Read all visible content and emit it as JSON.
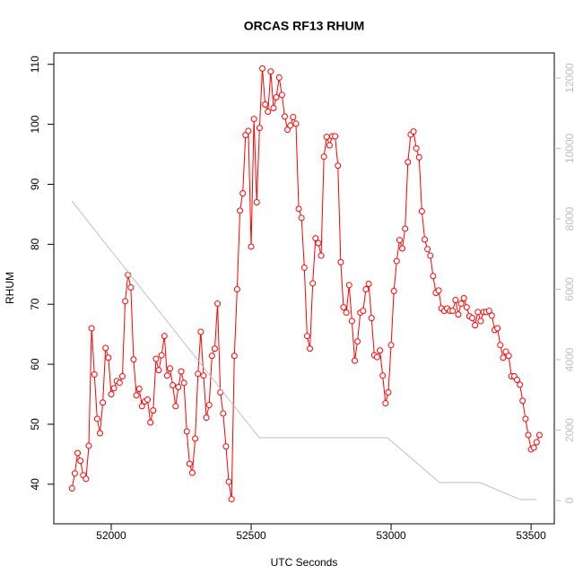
{
  "chart_data": {
    "type": "line",
    "title": "ORCAS RF13 RHUM",
    "xlabel": "UTC Seconds",
    "ylabel": "RHUM",
    "xlim": [
      51795,
      53583
    ],
    "xticks": [
      52000,
      52500,
      53000,
      53500
    ],
    "ylim": [
      33.4,
      111.9
    ],
    "yticks": [
      40,
      50,
      60,
      70,
      80,
      90,
      100,
      110
    ],
    "y2lim": [
      -662,
      12713
    ],
    "y2ticks": [
      0,
      2000,
      4000,
      6000,
      8000,
      10000,
      12000
    ],
    "series": [
      {
        "color": "#ff0000",
        "markers": true,
        "x": [
          51860,
          51870,
          51880,
          51890,
          51900,
          51910,
          51920,
          51930,
          51940,
          51950,
          51960,
          51970,
          51980,
          51990,
          52000,
          52010,
          52020,
          52030,
          52040,
          52050,
          52060,
          52070,
          52080,
          52090,
          52100,
          52110,
          52120,
          52130,
          52140,
          52150,
          52160,
          52170,
          52180,
          52190,
          52200,
          52210,
          52220,
          52230,
          52240,
          52250,
          52260,
          52270,
          52280,
          52290,
          52300,
          52310,
          52320,
          52330,
          52340,
          52350,
          52360,
          52370,
          52380,
          52390,
          52400,
          52410,
          52420,
          52430,
          52440,
          52450,
          52460,
          52470,
          52480,
          52490,
          52500,
          52510,
          52520,
          52530,
          52540,
          52550,
          52560,
          52570,
          52580,
          52590,
          52600,
          52610,
          52620,
          52630,
          52640,
          52650,
          52660,
          52670,
          52680,
          52690,
          52700,
          52710,
          52720,
          52730,
          52740,
          52750,
          52760,
          52770,
          52780,
          52790,
          52800,
          52810,
          52820,
          52830,
          52840,
          52850,
          52860,
          52870,
          52880,
          52890,
          52900,
          52910,
          52920,
          52930,
          52940,
          52950,
          52960,
          52970,
          52980,
          52990,
          53000,
          53010,
          53020,
          53030,
          53040,
          53050,
          53060,
          53070,
          53080,
          53090,
          53100,
          53110,
          53120,
          53130,
          53140,
          53150,
          53160,
          53170,
          53180,
          53190,
          53200,
          53210,
          53220,
          53230,
          53240,
          53250,
          53260,
          53270,
          53280,
          53290,
          53300,
          53310,
          53320,
          53330,
          53340,
          53350,
          53360,
          53370,
          53380,
          53390,
          53400,
          53410,
          53420,
          53430,
          53440,
          53450,
          53460,
          53470,
          53480,
          53490,
          53500,
          53510,
          53520,
          53530
        ],
        "values": [
          39.3,
          41.8,
          45.2,
          43.9,
          41.5,
          40.9,
          46.4,
          66.0,
          58.3,
          50.9,
          48.5,
          53.6,
          62.7,
          61.1,
          55.0,
          56.0,
          57.2,
          56.9,
          58.0,
          70.5,
          74.9,
          72.8,
          60.8,
          54.8,
          55.9,
          53.0,
          53.8,
          54.1,
          50.3,
          52.3,
          60.9,
          59.0,
          61.5,
          64.7,
          58.1,
          59.3,
          56.5,
          53.0,
          56.2,
          58.8,
          56.9,
          48.8,
          43.4,
          41.9,
          47.6,
          58.4,
          65.4,
          58.1,
          51.1,
          53.2,
          61.4,
          62.6,
          70.1,
          55.3,
          51.8,
          46.3,
          40.4,
          37.5,
          61.4,
          72.5,
          85.6,
          88.5,
          98.2,
          98.9,
          79.6,
          100.9,
          87.0,
          99.4,
          109.3,
          103.3,
          102.1,
          108.8,
          102.7,
          104.5,
          107.8,
          104.9,
          101.3,
          99.1,
          99.8,
          101.2,
          100.1,
          85.9,
          84.4,
          76.1,
          64.7,
          62.6,
          73.5,
          81.0,
          80.2,
          78.1,
          94.6,
          97.9,
          96.5,
          98.0,
          98.0,
          93.1,
          77.0,
          69.5,
          68.6,
          73.2,
          67.2,
          60.6,
          63.8,
          68.6,
          68.9,
          72.5,
          73.4,
          67.7,
          61.5,
          61.2,
          62.3,
          58.1,
          53.5,
          55.3,
          63.2,
          72.2,
          77.2,
          80.7,
          79.3,
          82.6,
          93.7,
          98.3,
          98.8,
          96.0,
          94.5,
          85.5,
          80.8,
          79.2,
          78.1,
          74.7,
          71.9,
          72.3,
          69.3,
          68.9,
          69.3,
          68.9,
          68.9,
          70.7,
          68.3,
          70.1,
          71.0,
          69.5,
          68.0,
          67.7,
          66.5,
          68.7,
          67.2,
          68.7,
          68.7,
          68.9,
          68.1,
          65.7,
          66.0,
          63.2,
          61.1,
          62.1,
          61.4,
          58.0,
          58.0,
          57.4,
          56.6,
          53.9,
          50.9,
          48.2,
          45.8,
          46.1,
          47.0,
          48.2
        ]
      },
      {
        "color": "#bebebe",
        "markers": false,
        "axis": "y2",
        "x": [
          51859,
          52529,
          52987,
          53173,
          53317,
          53462,
          53519
        ],
        "values": [
          8510,
          1783,
          1783,
          510,
          510,
          25,
          25
        ]
      }
    ]
  }
}
